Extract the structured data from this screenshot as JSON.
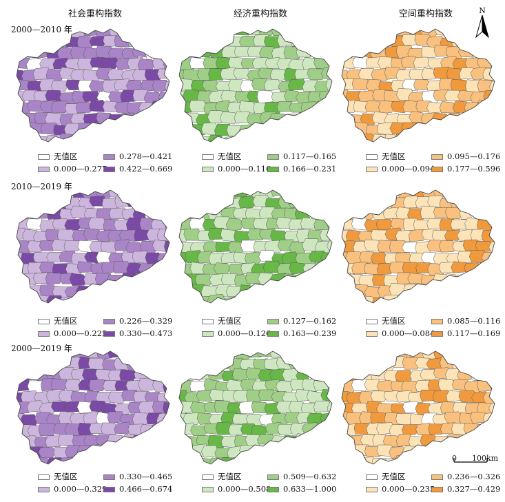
{
  "columns": [
    "社会重构指数",
    "经济重构指数",
    "空间重构指数"
  ],
  "periods": [
    "2000—2010 年",
    "2010—2019 年",
    "2000—2019 年"
  ],
  "no_value_label": "无值区",
  "north_label": "N",
  "scale": {
    "zero": "0",
    "end": "100km"
  },
  "palettes": {
    "social": {
      "nodata": "#ffffff",
      "c1": "#cdb6de",
      "c2": "#a985c8",
      "c3": "#7a4aa6"
    },
    "economic": {
      "nodata": "#ffffff",
      "c1": "#cfe7c1",
      "c2": "#9fce86",
      "c3": "#67b847"
    },
    "spatial": {
      "nodata": "#ffffff",
      "c1": "#fde4b8",
      "c2": "#f9c07e",
      "c3": "#f19a3d"
    }
  },
  "legends": [
    [
      [
        "0.000—0.277",
        "0.278—0.421",
        "0.422—0.669"
      ],
      [
        "0.000—0.116",
        "0.117—0.165",
        "0.166—0.231"
      ],
      [
        "0.000—0.094",
        "0.095—0.176",
        "0.177—0.596"
      ]
    ],
    [
      [
        "0.000—0.225",
        "0.226—0.329",
        "0.330—0.473"
      ],
      [
        "0.000—0.126",
        "0.127—0.162",
        "0.163—0.239"
      ],
      [
        "0.000—0.084",
        "0.085—0.116",
        "0.117—0.169"
      ]
    ],
    [
      [
        "0.000—0.329",
        "0.330—0.465",
        "0.466—0.674"
      ],
      [
        "0.000—0.508",
        "0.509—0.632",
        "0.633—1.000"
      ],
      [
        "0.000—0.235",
        "0.236—0.326",
        "0.327—0.429"
      ]
    ]
  ]
}
